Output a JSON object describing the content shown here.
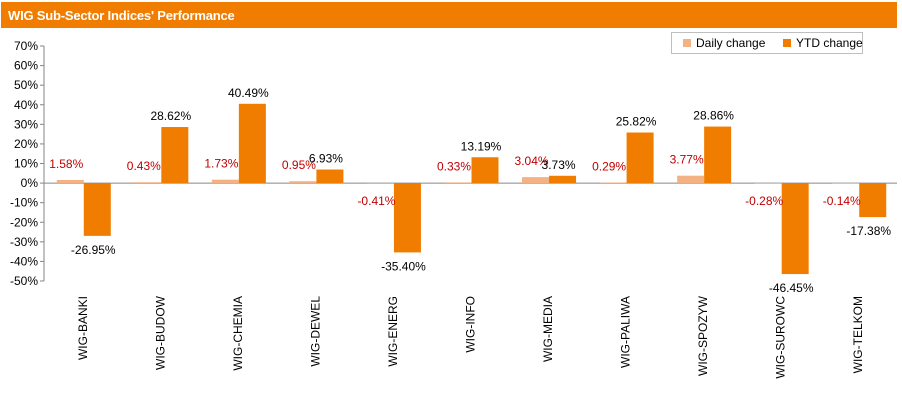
{
  "header": {
    "title": "WIG Sub-Sector Indices' Performance"
  },
  "chart_data": {
    "type": "bar",
    "title": "WIG Sub-Sector Indices' Performance",
    "categories": [
      "WIG-BANKI",
      "WIG-BUDOW",
      "WIG-CHEMIA",
      "WIG-DEWEL",
      "WIG-ENERG",
      "WIG-INFO",
      "WIG-MEDIA",
      "WIG-PALIWA",
      "WIG-SPOZYW",
      "WIG-SUROWC",
      "WIG-TELKOM"
    ],
    "series": [
      {
        "name": "Daily change",
        "color": "#F4B183",
        "values": [
          1.58,
          0.43,
          1.73,
          0.95,
          -0.41,
          0.33,
          3.04,
          0.29,
          3.77,
          -0.28,
          -0.14
        ],
        "labels": [
          "1.58%",
          "0.43%",
          "1.73%",
          "0.95%",
          "-0.41%",
          "0.33%",
          "3.04%",
          "0.29%",
          "3.77%",
          "-0.28%",
          "-0.14%"
        ]
      },
      {
        "name": "YTD change",
        "color": "#F07D00",
        "values": [
          -26.95,
          28.62,
          40.49,
          6.93,
          -35.4,
          13.19,
          3.73,
          25.82,
          28.86,
          -46.45,
          -17.38
        ],
        "labels": [
          "-26.95%",
          "28.62%",
          "40.49%",
          "6.93%",
          "-35.40%",
          "13.19%",
          "3.73%",
          "25.82%",
          "28.86%",
          "-46.45%",
          "-17.38%"
        ]
      }
    ],
    "ylim": [
      -50,
      70
    ],
    "yticks": [
      70,
      60,
      50,
      40,
      30,
      20,
      10,
      0,
      -10,
      -20,
      -30,
      -40,
      -50
    ],
    "ytick_labels": [
      "70%",
      "60%",
      "50%",
      "40%",
      "30%",
      "20%",
      "10%",
      "0%",
      "-10%",
      "-20%",
      "-30%",
      "-40%",
      "-50%"
    ],
    "grid": false,
    "legend_position": "top-right",
    "daily_label_color": "#C00000",
    "ytd_label_color": "#000000"
  }
}
